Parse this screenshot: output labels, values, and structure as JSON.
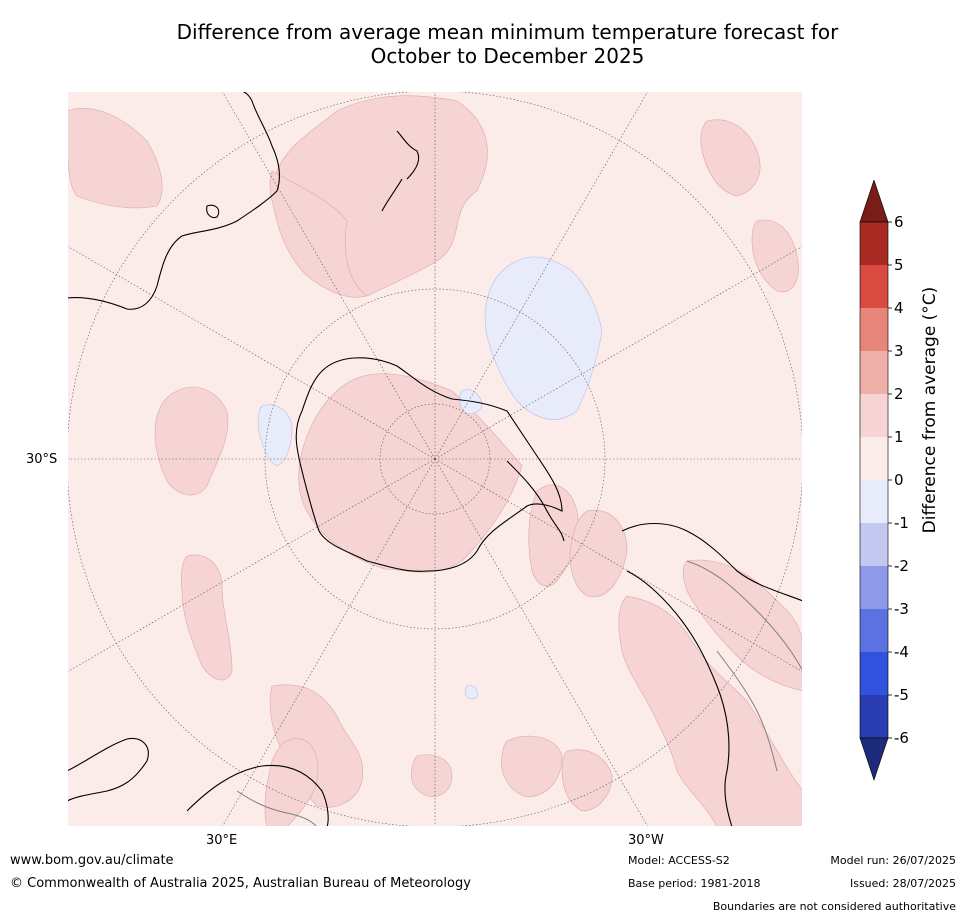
{
  "title": {
    "line1": "Difference from average mean minimum temperature forecast for",
    "line2": "October to December 2025"
  },
  "map": {
    "projection": "south-polar-stereographic",
    "lat_label": "30°S",
    "lon_labels": {
      "east": "30°E",
      "west": "30°W"
    },
    "coastline_color": "#000000",
    "border_color": "#808080"
  },
  "colorbar": {
    "label": "Difference from average (°C)",
    "ticks": [
      "6",
      "5",
      "4",
      "3",
      "2",
      "1",
      "0",
      "-1",
      "-2",
      "-3",
      "-4",
      "-5",
      "-6"
    ],
    "bins": [
      {
        "range": ">6",
        "color": "#7a1c18"
      },
      {
        "range": "5 to 6",
        "color": "#a82a23"
      },
      {
        "range": "4 to 5",
        "color": "#d94b40"
      },
      {
        "range": "3 to 4",
        "color": "#e8857b"
      },
      {
        "range": "2 to 3",
        "color": "#efb0aa"
      },
      {
        "range": "1 to 2",
        "color": "#f5d4d3"
      },
      {
        "range": "0 to 1",
        "color": "#fbecea"
      },
      {
        "range": "-1 to 0",
        "color": "#e8ebfa"
      },
      {
        "range": "-2 to -1",
        "color": "#c2c8f0"
      },
      {
        "range": "-3 to -2",
        "color": "#8e9ae8"
      },
      {
        "range": "-4 to -3",
        "color": "#5c71e2"
      },
      {
        "range": "-5 to -4",
        "color": "#3152dc"
      },
      {
        "range": "-6 to -5",
        "color": "#2a3db0"
      },
      {
        "range": "<-6",
        "color": "#1e2a7a"
      }
    ]
  },
  "footer": {
    "website": "www.bom.gov.au/climate",
    "copyright": "© Commonwealth of Australia 2025, Australian Bureau of Meteorology",
    "model": "Model: ACCESS-S2",
    "base_period": "Base period: 1981-2018",
    "model_run": "Model run: 26/07/2025",
    "issued": "Issued: 28/07/2025",
    "disclaimer": "Boundaries are not considered authoritative"
  }
}
